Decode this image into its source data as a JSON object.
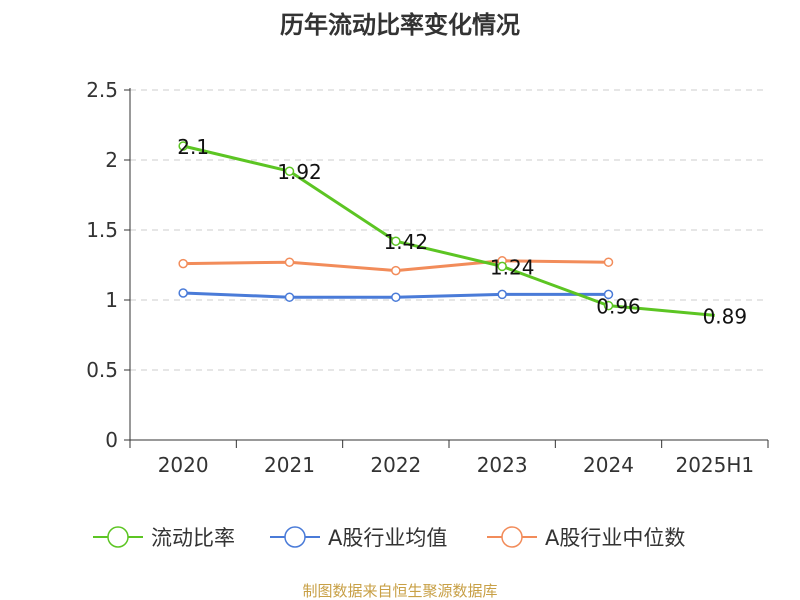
{
  "chart_data": {
    "type": "line",
    "title": "历年流动比率变化情况",
    "categories": [
      "2020",
      "2021",
      "2022",
      "2023",
      "2024",
      "2025H1"
    ],
    "ylim": [
      0,
      2.5
    ],
    "yticks": [
      "0",
      "0.5",
      "1",
      "1.5",
      "2",
      "2.5"
    ],
    "grid": true,
    "legend_position": "bottom",
    "series": [
      {
        "name": "流动比率",
        "color": "#5cc523",
        "values": [
          2.1,
          1.92,
          1.42,
          1.24,
          0.96,
          0.89
        ],
        "labels": [
          "2.1",
          "1.92",
          "1.42",
          "1.24",
          "0.96",
          "0.89"
        ]
      },
      {
        "name": "A股行业均值",
        "color": "#4a7bd8",
        "values": [
          1.05,
          1.02,
          1.02,
          1.04,
          1.04,
          null
        ]
      },
      {
        "name": "A股行业中位数",
        "color": "#f28c5a",
        "values": [
          1.26,
          1.27,
          1.21,
          1.28,
          1.27,
          null
        ]
      }
    ]
  },
  "source_text": "制图数据来自恒生聚源数据库"
}
